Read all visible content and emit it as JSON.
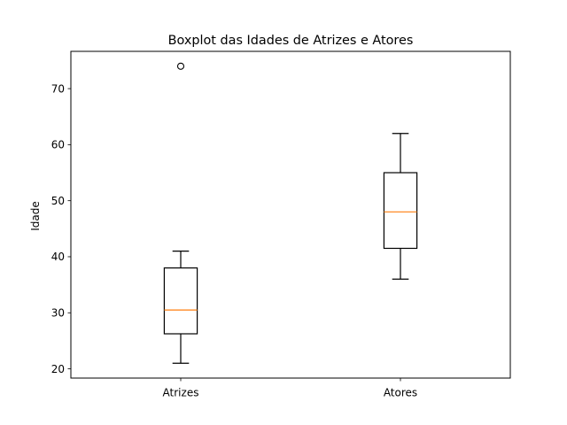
{
  "chart_data": {
    "type": "box",
    "title": "Boxplot das Idades de Atrizes e Atores",
    "xlabel": "",
    "ylabel": "Idade",
    "ylim": [
      18.35,
      76.65
    ],
    "yticks": [
      20,
      30,
      40,
      50,
      60,
      70
    ],
    "grid": false,
    "categories": [
      "Atrizes",
      "Atores"
    ],
    "boxes": [
      {
        "category": "Atrizes",
        "whisker_low": 21,
        "q1": 26.25,
        "median": 30.5,
        "q3": 38,
        "whisker_high": 41,
        "outliers": [
          74
        ]
      },
      {
        "category": "Atores",
        "whisker_low": 36,
        "q1": 41.5,
        "median": 48,
        "q3": 55,
        "whisker_high": 62,
        "outliers": []
      }
    ],
    "colors": {
      "box": "#000000",
      "median": "#ff7f0e",
      "background": "#ffffff"
    }
  }
}
